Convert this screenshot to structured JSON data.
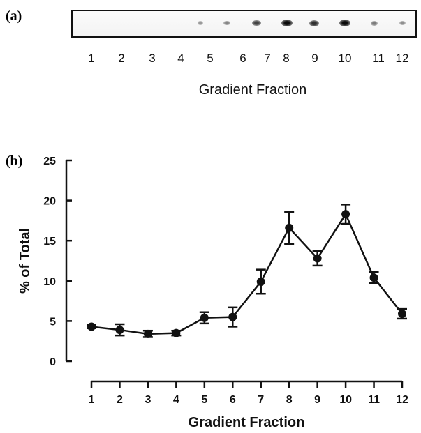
{
  "panel_a": {
    "label": "(a)",
    "xlabel": "Gradient Fraction",
    "lanes": [
      "1",
      "2",
      "3",
      "4",
      "5",
      "6",
      "7",
      "8",
      "9",
      "10",
      "11",
      "12"
    ],
    "spot_intensity": [
      0,
      0,
      0,
      0,
      0.25,
      0.35,
      0.7,
      1.0,
      0.8,
      1.0,
      0.4,
      0.3
    ]
  },
  "panel_b": {
    "label": "(b)"
  },
  "chart_data": {
    "type": "line",
    "x": [
      1,
      2,
      3,
      4,
      5,
      6,
      7,
      8,
      9,
      10,
      11,
      12
    ],
    "categories": [
      "1",
      "2",
      "3",
      "4",
      "5",
      "6",
      "7",
      "8",
      "9",
      "10",
      "11",
      "12"
    ],
    "series": [
      {
        "values": [
          4.3,
          3.9,
          3.4,
          3.5,
          5.4,
          5.5,
          9.9,
          16.6,
          12.8,
          18.3,
          10.4,
          5.9
        ],
        "error": [
          0.2,
          0.7,
          0.4,
          0.3,
          0.7,
          1.2,
          1.5,
          2.0,
          0.9,
          1.2,
          0.7,
          0.6
        ]
      }
    ],
    "xlabel": "Gradient Fraction",
    "ylabel": "% of Total",
    "yticks": [
      "0",
      "5",
      "10",
      "15",
      "20",
      "25"
    ],
    "ylim": [
      0,
      25
    ],
    "xlim": [
      1,
      12
    ],
    "grid": false,
    "color": "#111111"
  }
}
